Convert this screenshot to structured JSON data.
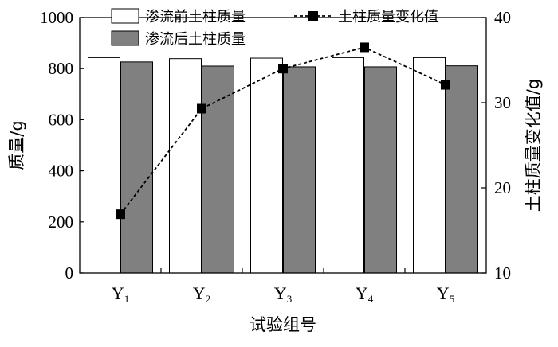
{
  "chart_data": {
    "type": "bar",
    "xlabel": "试验组号",
    "ylabel_left": "质量/g",
    "ylabel_right": "土柱质量变化值/g",
    "categories": [
      {
        "base": "Y",
        "sub": "1"
      },
      {
        "base": "Y",
        "sub": "2"
      },
      {
        "base": "Y",
        "sub": "3"
      },
      {
        "base": "Y",
        "sub": "4"
      },
      {
        "base": "Y",
        "sub": "5"
      }
    ],
    "ylim_left": [
      0,
      1000
    ],
    "yticks_left": [
      "0",
      "200",
      "400",
      "600",
      "800",
      "1000"
    ],
    "ylim_right": [
      10,
      40
    ],
    "yticks_right": [
      "10",
      "20",
      "30",
      "40"
    ],
    "series": [
      {
        "name": "渗流前土柱质量",
        "type": "bar",
        "axis": "left",
        "color": "#ffffff",
        "values": [
          843,
          839,
          841,
          843,
          843
        ]
      },
      {
        "name": "渗流后土柱质量",
        "type": "bar",
        "axis": "left",
        "color": "#808080",
        "values": [
          826,
          810,
          807,
          807,
          811
        ]
      },
      {
        "name": "土柱质量变化值",
        "type": "line",
        "axis": "right",
        "color": "#000000",
        "values": [
          16.9,
          29.3,
          34.0,
          36.5,
          32.1
        ]
      }
    ],
    "legend_placement": "top"
  }
}
